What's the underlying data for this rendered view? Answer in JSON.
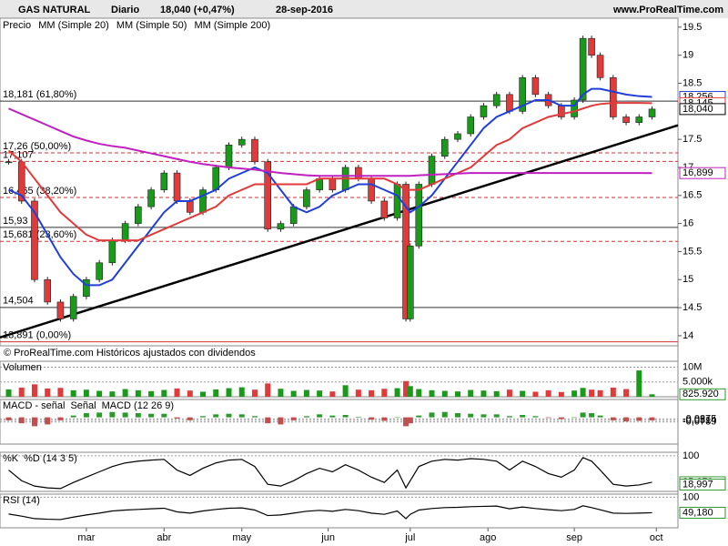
{
  "chart_data": {
    "type": "candlestick",
    "title": "GAS NATURAL",
    "period": "Diario",
    "last": "18,040 (+0,47%)",
    "date": "28-sep-2016",
    "site": "www.ProRealTime.com",
    "legend": [
      "Precio",
      "MM (Simple 20)",
      "MM (Simple 50)",
      "MM (Simple 200)"
    ],
    "footnote": "© ProRealTime.com Históricos ajustados con dividendos",
    "xlim": [
      -2,
      155
    ],
    "xticks": [
      {
        "value": 18,
        "label": "mar"
      },
      {
        "value": 36,
        "label": "abr"
      },
      {
        "value": 54,
        "label": "may"
      },
      {
        "value": 74,
        "label": "jun"
      },
      {
        "value": 93,
        "label": "jul"
      },
      {
        "value": 111,
        "label": "ago"
      },
      {
        "value": 131,
        "label": "sep"
      },
      {
        "value": 150,
        "label": "oct"
      }
    ],
    "ylim": [
      13.82,
      19.66
    ],
    "yticks": [
      19.5,
      19,
      18.5,
      17.5,
      17,
      16.5,
      16,
      15.5,
      15,
      14.5,
      14
    ],
    "x": [
      0,
      3,
      6,
      9,
      12,
      15,
      18,
      21,
      24,
      27,
      30,
      33,
      36,
      39,
      42,
      45,
      48,
      51,
      54,
      57,
      60,
      63,
      66,
      69,
      72,
      75,
      78,
      81,
      84,
      87,
      90,
      92,
      93,
      95,
      98,
      101,
      104,
      107,
      110,
      113,
      116,
      119,
      122,
      125,
      128,
      131,
      133,
      135,
      137,
      140,
      143,
      146,
      149
    ],
    "series": [
      {
        "name": "Precio",
        "color": "#1a9a1a",
        "values": [
          17.1,
          16.4,
          15.0,
          14.6,
          14.3,
          14.7,
          15.0,
          15.3,
          15.7,
          16.0,
          16.3,
          16.6,
          16.9,
          16.4,
          16.2,
          16.6,
          17.0,
          17.4,
          17.5,
          17.1,
          15.9,
          16.0,
          16.3,
          16.6,
          16.8,
          16.6,
          17.0,
          16.8,
          16.4,
          16.1,
          16.7,
          14.3,
          15.6,
          16.7,
          17.2,
          17.5,
          17.6,
          17.9,
          18.1,
          18.3,
          18.0,
          18.6,
          18.3,
          18.1,
          17.9,
          18.2,
          19.3,
          19.0,
          18.6,
          17.9,
          17.8,
          17.9,
          18.04
        ]
      },
      {
        "name": "MM (Simple 20)",
        "color": "#1f3fd8",
        "values": [
          16.6,
          16.5,
          16.2,
          15.8,
          15.4,
          15.1,
          14.9,
          14.9,
          15.0,
          15.3,
          15.6,
          15.9,
          16.2,
          16.4,
          16.4,
          16.5,
          16.6,
          16.8,
          16.9,
          17.0,
          16.9,
          16.6,
          16.3,
          16.2,
          16.3,
          16.5,
          16.6,
          16.7,
          16.7,
          16.6,
          16.5,
          16.3,
          16.2,
          16.3,
          16.5,
          16.8,
          17.1,
          17.4,
          17.7,
          17.9,
          18.0,
          18.1,
          18.2,
          18.2,
          18.1,
          18.1,
          18.3,
          18.4,
          18.4,
          18.35,
          18.3,
          18.27,
          18.256
        ]
      },
      {
        "name": "MM (Simple 50)",
        "color": "#e03a3a",
        "values": [
          17.3,
          17.1,
          16.8,
          16.5,
          16.2,
          16.0,
          15.8,
          15.7,
          15.7,
          15.7,
          15.7,
          15.8,
          15.9,
          16.0,
          16.1,
          16.2,
          16.3,
          16.5,
          16.6,
          16.7,
          16.7,
          16.7,
          16.7,
          16.7,
          16.8,
          16.8,
          16.8,
          16.8,
          16.8,
          16.8,
          16.7,
          16.6,
          16.6,
          16.6,
          16.7,
          16.8,
          16.9,
          17.0,
          17.2,
          17.4,
          17.5,
          17.7,
          17.8,
          17.9,
          17.95,
          18.0,
          18.05,
          18.1,
          18.13,
          18.15,
          18.15,
          18.15,
          18.145
        ]
      },
      {
        "name": "MM (Simple 200)",
        "color": "#c020c0",
        "values": [
          18.05,
          17.95,
          17.85,
          17.75,
          17.65,
          17.55,
          17.48,
          17.42,
          17.38,
          17.35,
          17.3,
          17.25,
          17.2,
          17.15,
          17.1,
          17.06,
          17.03,
          17.0,
          16.98,
          16.96,
          16.93,
          16.9,
          16.88,
          16.86,
          16.85,
          16.85,
          16.85,
          16.85,
          16.85,
          16.85,
          16.85,
          16.85,
          16.85,
          16.86,
          16.87,
          16.88,
          16.89,
          16.9,
          16.9,
          16.9,
          16.9,
          16.9,
          16.9,
          16.9,
          16.9,
          16.9,
          16.9,
          16.9,
          16.9,
          16.9,
          16.9,
          16.9,
          16.899
        ]
      }
    ],
    "last_labels": [
      {
        "value": 18.256,
        "color": "#1f3fd8"
      },
      {
        "value": 18.145,
        "color": "#e03a3a"
      },
      {
        "value": 18.04,
        "label": "18,040",
        "color": "#000000"
      },
      {
        "value": 16.899,
        "label": "16,899",
        "color": "#c020c0"
      }
    ],
    "levels": [
      {
        "value": 18.181,
        "label": "18,181 (61,80%)",
        "color": "#333333"
      },
      {
        "value": 17.26,
        "label": "17,26 (50,00%)",
        "color": "#d03030",
        "dashed": true
      },
      {
        "value": 17.107,
        "label": "17,107",
        "color": "#d03030",
        "dashed": true
      },
      {
        "value": 16.465,
        "label": "16,465 (38,20%)",
        "color": "#d03030",
        "dashed": true
      },
      {
        "value": 15.93,
        "label": "15,93",
        "color": "#333333"
      },
      {
        "value": 15.681,
        "label": "15,681 (23,60%)",
        "color": "#d03030",
        "dashed": true
      },
      {
        "value": 14.504,
        "label": "14,504",
        "color": "#333333"
      },
      {
        "value": 13.891,
        "label": "13,891 (0,00%)",
        "color": "#d03030"
      }
    ],
    "trendline": {
      "x": [
        -2,
        155
      ],
      "y": [
        13.97,
        17.75
      ]
    },
    "panels": [
      {
        "title": "Volumen",
        "kind": "bar",
        "color": "#1a9a1a",
        "ylim": [
          0,
          12
        ],
        "yticks": [
          {
            "value": 10,
            "label": "10M"
          },
          {
            "value": 5,
            "label": "5.000k"
          }
        ],
        "last": {
          "value": 0.82592,
          "label": "825.920"
        },
        "values": [
          2.5,
          3.1,
          4.2,
          2.8,
          3.0,
          2.2,
          2.4,
          2.0,
          1.8,
          2.6,
          2.2,
          1.9,
          2.3,
          2.8,
          2.1,
          1.7,
          2.5,
          2.9,
          3.2,
          2.4,
          4.5,
          2.7,
          2.0,
          2.3,
          2.1,
          1.8,
          3.9,
          2.4,
          2.2,
          2.7,
          2.9,
          5.3,
          3.6,
          2.6,
          2.2,
          2.0,
          1.8,
          2.3,
          2.1,
          1.9,
          2.4,
          2.0,
          1.7,
          2.2,
          1.6,
          2.1,
          3.0,
          2.4,
          2.2,
          3.1,
          2.6,
          8.9,
          0.82592
        ]
      },
      {
        "title": "MACD - señal",
        "title2": "Señal",
        "title3": "MACD (12 26 9)",
        "kind": "hist",
        "color": "#c05050",
        "ylim": [
          -0.45,
          0.3
        ],
        "yticks": [
          {
            "value": -0.0275,
            "label": "-0,0275"
          },
          {
            "value": -0.0514,
            "label": "-0,0514"
          },
          {
            "value": -0.0789,
            "label": "-0,0789"
          }
        ],
        "values": [
          -0.05,
          -0.1,
          -0.15,
          -0.12,
          -0.05,
          0.03,
          0.07,
          0.08,
          0.09,
          0.08,
          0.07,
          0.06,
          0.06,
          -0.02,
          -0.05,
          0.02,
          0.05,
          0.06,
          0.05,
          0.02,
          -0.1,
          -0.12,
          -0.05,
          0.02,
          0.05,
          0.03,
          0.04,
          0.01,
          -0.04,
          -0.06,
          0.0,
          -0.15,
          -0.1,
          0.03,
          0.08,
          0.09,
          0.07,
          0.06,
          0.05,
          0.05,
          0.02,
          0.04,
          0.02,
          -0.01,
          -0.03,
          0.0,
          0.08,
          0.07,
          0.03,
          -0.05,
          -0.07,
          -0.06,
          -0.0514
        ]
      },
      {
        "title": "%K",
        "title2": "%D (14 3 5)",
        "kind": "line",
        "color": "#000000",
        "ylim": [
          0,
          110
        ],
        "yticks": [
          100
        ],
        "last_labels": [
          {
            "value": 25.67,
            "label": "25,670"
          },
          {
            "value": 18.997,
            "label": "18,997"
          }
        ],
        "values": [
          60,
          30,
          15,
          10,
          8,
          25,
          40,
          55,
          70,
          80,
          85,
          88,
          90,
          60,
          45,
          65,
          80,
          88,
          90,
          70,
          20,
          15,
          30,
          50,
          65,
          55,
          75,
          60,
          40,
          25,
          60,
          10,
          30,
          70,
          85,
          90,
          88,
          92,
          90,
          85,
          60,
          85,
          70,
          50,
          40,
          60,
          95,
          85,
          60,
          20,
          15,
          18,
          25.67
        ]
      },
      {
        "title": "RSI (14)",
        "kind": "line",
        "color": "#000000",
        "ylim": [
          0,
          110
        ],
        "yticks": [
          100
        ],
        "last": {
          "value": 49.18,
          "label": "49,180"
        },
        "values": [
          45,
          38,
          30,
          28,
          27,
          35,
          42,
          48,
          55,
          58,
          60,
          62,
          64,
          52,
          48,
          55,
          60,
          64,
          65,
          58,
          40,
          42,
          48,
          54,
          57,
          54,
          60,
          56,
          48,
          44,
          55,
          30,
          44,
          58,
          63,
          66,
          67,
          69,
          70,
          71,
          62,
          68,
          63,
          59,
          56,
          60,
          72,
          66,
          59,
          48,
          47,
          48,
          49.18
        ]
      }
    ]
  }
}
